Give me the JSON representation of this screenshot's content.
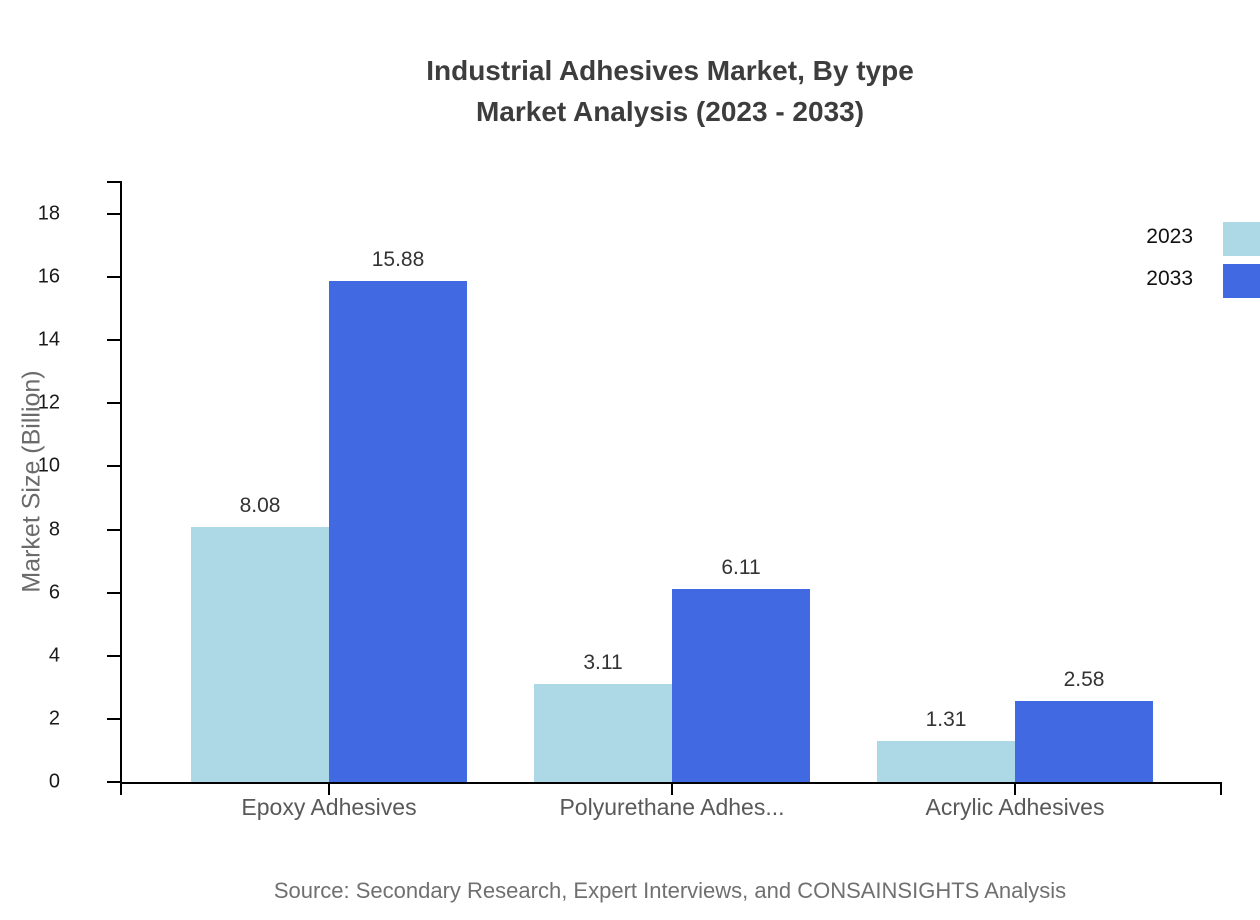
{
  "chart_data": {
    "type": "bar",
    "title": "Industrial Adhesives Market, By type",
    "subtitle": "Market Analysis (2023 - 2033)",
    "categories": [
      "Epoxy Adhesives",
      "Polyurethane Adhes...",
      "Acrylic Adhesives"
    ],
    "series": [
      {
        "name": "2023",
        "color": "#ADD8E6",
        "values": [
          8.08,
          3.11,
          1.31
        ]
      },
      {
        "name": "2033",
        "color": "#4169E1",
        "values": [
          15.88,
          6.11,
          2.58
        ]
      }
    ],
    "xlabel": "",
    "ylabel": "Market Size (Billion)",
    "ylim": [
      0,
      18
    ],
    "ytick_step": 2,
    "yticks": [
      0,
      2,
      4,
      6,
      8,
      10,
      12,
      14,
      16,
      18
    ],
    "grid": false,
    "legend_position": "top-right",
    "value_labels_shown": true,
    "source": "Source: Secondary Research, Expert Interviews, and CONSAINSIGHTS Analysis"
  }
}
